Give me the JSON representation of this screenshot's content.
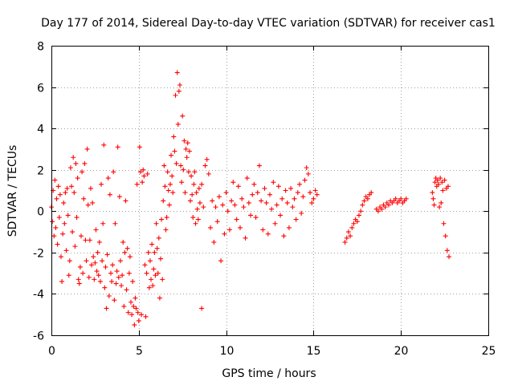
{
  "chart_data": {
    "type": "scatter",
    "title": "Day 177 of 2014, Sidereal Day-to-day VTEC variation (SDTVAR) for receiver cas1",
    "xlabel": "GPS time / hours",
    "ylabel": "SDTVAR / TECUs",
    "xlim": [
      0,
      25
    ],
    "ylim": [
      -6,
      8
    ],
    "xticks": [
      "0",
      "5",
      "10",
      "15",
      "20",
      "25"
    ],
    "yticks": [
      "-6",
      "-4",
      "-2",
      "0",
      "2",
      "4",
      "6",
      "8"
    ],
    "grid": true,
    "marker": "+",
    "color": "#ff0000",
    "series": [
      {
        "name": "cas1",
        "x": [
          0.0,
          0.05,
          0.1,
          0.15,
          0.2,
          0.25,
          0.3,
          0.35,
          0.4,
          0.45,
          0.5,
          0.55,
          0.6,
          0.65,
          0.7,
          0.75,
          0.8,
          0.85,
          0.9,
          0.95,
          1.0,
          1.05,
          1.1,
          1.15,
          1.2,
          1.25,
          1.3,
          1.35,
          1.4,
          1.45,
          1.5,
          1.55,
          1.6,
          1.65,
          1.7,
          1.75,
          1.8,
          1.85,
          1.9,
          1.95,
          2.0,
          2.05,
          2.1,
          2.15,
          2.2,
          2.25,
          2.3,
          2.35,
          2.4,
          2.45,
          2.5,
          2.55,
          2.6,
          2.65,
          2.7,
          2.75,
          2.8,
          2.85,
          2.9,
          2.95,
          3.0,
          3.05,
          3.1,
          3.15,
          3.2,
          3.25,
          3.3,
          3.35,
          3.4,
          3.45,
          3.5,
          3.55,
          3.6,
          3.65,
          3.7,
          3.75,
          3.8,
          3.85,
          3.9,
          3.95,
          4.0,
          4.05,
          4.1,
          4.15,
          4.2,
          4.25,
          4.3,
          4.35,
          4.4,
          4.45,
          4.5,
          4.55,
          4.6,
          4.65,
          4.7,
          4.75,
          4.8,
          4.85,
          4.9,
          4.95,
          5.0,
          5.05,
          5.1,
          5.15,
          5.2,
          5.25,
          5.3,
          5.35,
          5.4,
          5.45,
          5.5,
          5.55,
          5.6,
          5.65,
          5.7,
          5.75,
          5.8,
          5.85,
          5.9,
          5.95,
          6.0,
          6.05,
          6.1,
          6.15,
          6.2,
          6.25,
          6.3,
          6.35,
          6.4,
          6.45,
          6.5,
          6.55,
          6.6,
          6.65,
          6.7,
          6.75,
          6.8,
          6.85,
          6.9,
          6.95,
          7.0,
          7.05,
          7.1,
          7.15,
          7.2,
          7.25,
          7.3,
          7.35,
          7.4,
          7.45,
          7.5,
          7.55,
          7.6,
          7.65,
          7.7,
          7.75,
          7.8,
          7.85,
          7.9,
          7.95,
          8.0,
          8.05,
          8.1,
          8.15,
          8.2,
          8.25,
          8.3,
          8.35,
          8.4,
          8.45,
          8.5,
          8.6,
          8.7,
          8.8,
          8.9,
          9.0,
          9.1,
          9.2,
          9.3,
          9.4,
          9.5,
          9.6,
          9.7,
          9.8,
          9.9,
          10.0,
          10.1,
          10.2,
          10.3,
          10.4,
          10.5,
          10.6,
          10.7,
          10.8,
          10.9,
          11.0,
          11.1,
          11.2,
          11.3,
          11.4,
          11.5,
          11.6,
          11.7,
          11.8,
          11.9,
          12.0,
          12.1,
          12.2,
          12.3,
          12.4,
          12.5,
          12.6,
          12.7,
          12.8,
          12.9,
          13.0,
          13.1,
          13.2,
          13.3,
          13.4,
          13.5,
          13.6,
          13.7,
          13.8,
          13.9,
          14.0,
          14.1,
          14.2,
          14.3,
          14.4,
          14.5,
          14.6,
          14.7,
          14.8,
          14.9,
          15.0,
          15.1,
          15.2,
          16.8,
          16.9,
          17.0,
          17.1,
          17.2,
          17.3,
          17.4,
          17.5,
          17.6,
          17.7,
          17.8,
          17.9,
          18.0,
          18.1,
          18.2,
          18.3,
          18.6,
          18.7,
          18.8,
          18.9,
          19.0,
          19.1,
          19.2,
          19.3,
          19.4,
          19.5,
          19.6,
          19.7,
          19.8,
          19.9,
          20.0,
          20.1,
          20.2,
          20.3,
          21.8,
          21.85,
          21.9,
          21.95,
          22.0,
          22.05,
          22.1,
          22.15,
          22.2,
          22.25,
          22.3,
          22.35,
          22.4,
          22.45,
          22.5,
          22.55,
          22.6,
          22.65,
          22.7,
          22.75,
          8.6
        ],
        "y": [
          0.2,
          -0.5,
          1.0,
          -1.2,
          1.5,
          -0.8,
          0.6,
          -1.6,
          1.2,
          -0.3,
          0.8,
          -2.2,
          -3.4,
          -1.1,
          0.4,
          -0.6,
          0.9,
          -1.9,
          1.1,
          -0.2,
          -3.1,
          -2.4,
          2.1,
          1.2,
          -1.0,
          2.6,
          0.9,
          -1.7,
          2.3,
          -0.3,
          1.6,
          -3.3,
          -3.5,
          -2.7,
          -1.2,
          1.9,
          -3.0,
          0.6,
          2.3,
          -1.4,
          -2.4,
          3.0,
          0.3,
          -3.2,
          -1.4,
          1.1,
          -2.6,
          0.4,
          -2.2,
          -3.3,
          -2.5,
          -0.9,
          -2.9,
          -2.0,
          -3.1,
          -1.5,
          -3.4,
          1.3,
          -2.4,
          -0.6,
          3.2,
          -3.7,
          -2.7,
          -4.7,
          -2.1,
          1.6,
          -4.1,
          0.8,
          -3.0,
          -3.4,
          -2.6,
          1.9,
          -4.3,
          -0.6,
          -3.5,
          -2.9,
          3.1,
          -3.2,
          0.7,
          -2.4,
          -3.6,
          -3.1,
          -1.5,
          -4.6,
          -2.0,
          0.5,
          -3.8,
          -1.8,
          -4.9,
          -3.0,
          -2.2,
          -4.4,
          -5.0,
          -3.4,
          -4.6,
          -5.5,
          -4.2,
          -4.7,
          1.3,
          -4.9,
          -5.3,
          3.1,
          1.9,
          -5.0,
          1.4,
          2.0,
          1.7,
          -2.6,
          -5.1,
          -3.0,
          1.8,
          -2.0,
          -3.7,
          -2.4,
          -3.3,
          -1.6,
          -3.6,
          -2.8,
          -2.0,
          -3.1,
          -0.6,
          -1.8,
          -3.0,
          -1.3,
          -4.2,
          -2.3,
          -0.4,
          -3.3,
          0.5,
          2.2,
          1.2,
          -0.9,
          -0.3,
          1.9,
          1.0,
          0.3,
          1.3,
          2.7,
          1.7,
          0.9,
          3.6,
          2.9,
          5.6,
          2.3,
          6.7,
          4.2,
          5.8,
          6.1,
          2.2,
          1.4,
          4.6,
          2.0,
          3.4,
          0.9,
          3.0,
          2.6,
          3.3,
          1.9,
          2.9,
          0.5,
          1.7,
          0.8,
          -0.3,
          1.3,
          1.9,
          -0.6,
          0.9,
          0.1,
          -0.4,
          1.1,
          0.4,
          1.3,
          0.2,
          2.2,
          2.5,
          1.8,
          -0.8,
          0.5,
          -1.5,
          0.2,
          -0.5,
          0.7,
          -2.4,
          0.3,
          -1.1,
          0.9,
          0.0,
          -0.9,
          0.5,
          1.4,
          0.3,
          -0.4,
          1.2,
          -0.8,
          0.6,
          0.2,
          -1.3,
          1.6,
          0.4,
          -0.2,
          0.8,
          1.3,
          -0.3,
          0.9,
          2.2,
          0.5,
          -0.9,
          1.1,
          0.4,
          -1.1,
          0.8,
          0.1,
          1.4,
          -0.6,
          0.3,
          1.2,
          -0.2,
          0.6,
          -1.2,
          1.0,
          0.4,
          -0.8,
          1.1,
          0.2,
          0.6,
          -0.4,
          0.9,
          1.3,
          -0.1,
          0.7,
          1.5,
          2.1,
          1.8,
          0.9,
          0.4,
          0.6,
          1.0,
          0.8,
          -1.5,
          -1.3,
          -1.0,
          -1.2,
          -0.8,
          -0.6,
          -0.4,
          -0.5,
          -0.2,
          0.0,
          0.3,
          0.5,
          0.7,
          0.6,
          0.8,
          0.9,
          0.1,
          0.0,
          0.2,
          0.1,
          0.3,
          0.2,
          0.4,
          0.3,
          0.5,
          0.4,
          0.5,
          0.6,
          0.4,
          0.5,
          0.6,
          0.4,
          0.5,
          0.6,
          0.9,
          0.6,
          0.3,
          1.4,
          1.6,
          1.2,
          1.5,
          1.3,
          0.2,
          1.6,
          0.4,
          1.4,
          1.0,
          -0.6,
          1.5,
          -1.2,
          1.1,
          -1.9,
          1.2,
          -2.2,
          -4.7
        ]
      }
    ]
  }
}
